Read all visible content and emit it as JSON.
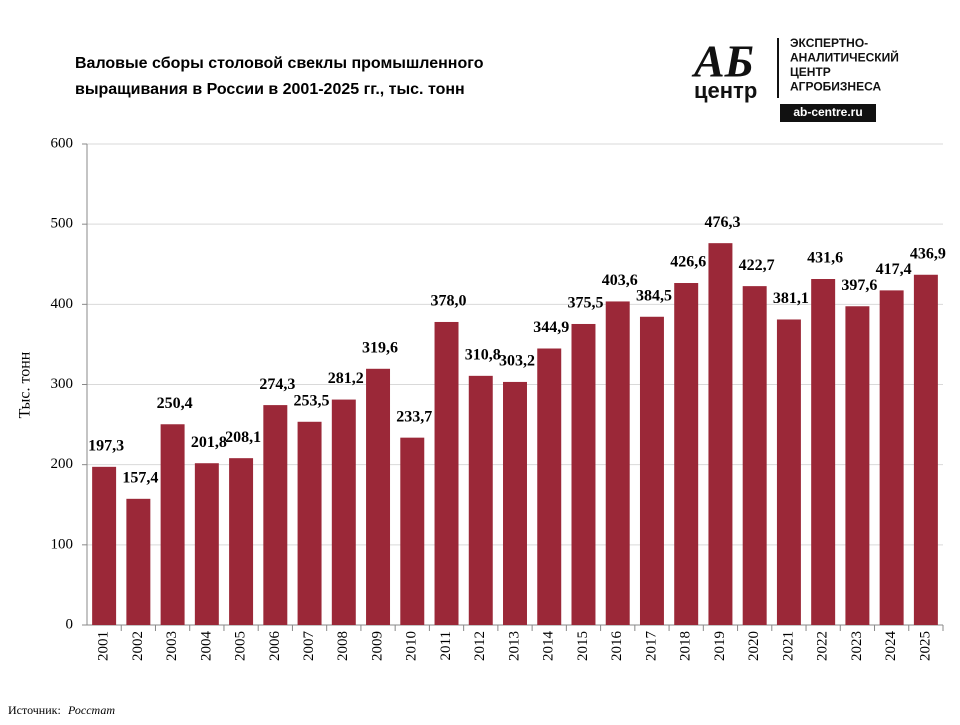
{
  "chart_data": {
    "type": "bar",
    "title": [
      "Валовые сборы столовой свеклы промышленного",
      "выращивания  в России в 2001-2025 гг., тыс. тонн"
    ],
    "y_label": "Тыс. тонн",
    "categories": [
      "2001",
      "2002",
      "2003",
      "2004",
      "2005",
      "2006",
      "2007",
      "2008",
      "2009",
      "2010",
      "2011",
      "2012",
      "2013",
      "2014",
      "2015",
      "2016",
      "2017",
      "2018",
      "2019",
      "2020",
      "2021",
      "2022",
      "2023",
      "2024",
      "2025"
    ],
    "values": [
      197.3,
      157.4,
      250.4,
      201.8,
      208.1,
      274.3,
      253.5,
      281.2,
      319.6,
      233.7,
      378.0,
      310.8,
      303.2,
      344.9,
      375.5,
      403.6,
      384.5,
      426.6,
      476.3,
      422.7,
      381.1,
      431.6,
      397.6,
      417.4,
      436.9
    ],
    "value_labels": [
      "197,3",
      "157,4",
      "250,4",
      "201,8",
      "208,1",
      "274,3",
      "253,5",
      "281,2",
      "319,6",
      "233,7",
      "378,0",
      "310,8",
      "303,2",
      "344,9",
      "375,5",
      "403,6",
      "384,5",
      "426,6",
      "476,3",
      "422,7",
      "381,1",
      "431,6",
      "397,6",
      "417,4",
      "436,9"
    ],
    "color": "#9b2838",
    "ylim": [
      0,
      600
    ],
    "yticks": [
      0,
      100,
      200,
      300,
      400,
      500,
      600
    ],
    "grid": true
  },
  "logo": {
    "mark": "АБ",
    "sub": "центр",
    "lines": [
      "ЭКСПЕРТНО-",
      "АНАЛИТИЧЕСКИЙ",
      "ЦЕНТР",
      "АГРОБИЗНЕСА"
    ],
    "url": "ab-centre.ru"
  },
  "source": {
    "label": "Источник:",
    "name": "Росстат"
  }
}
